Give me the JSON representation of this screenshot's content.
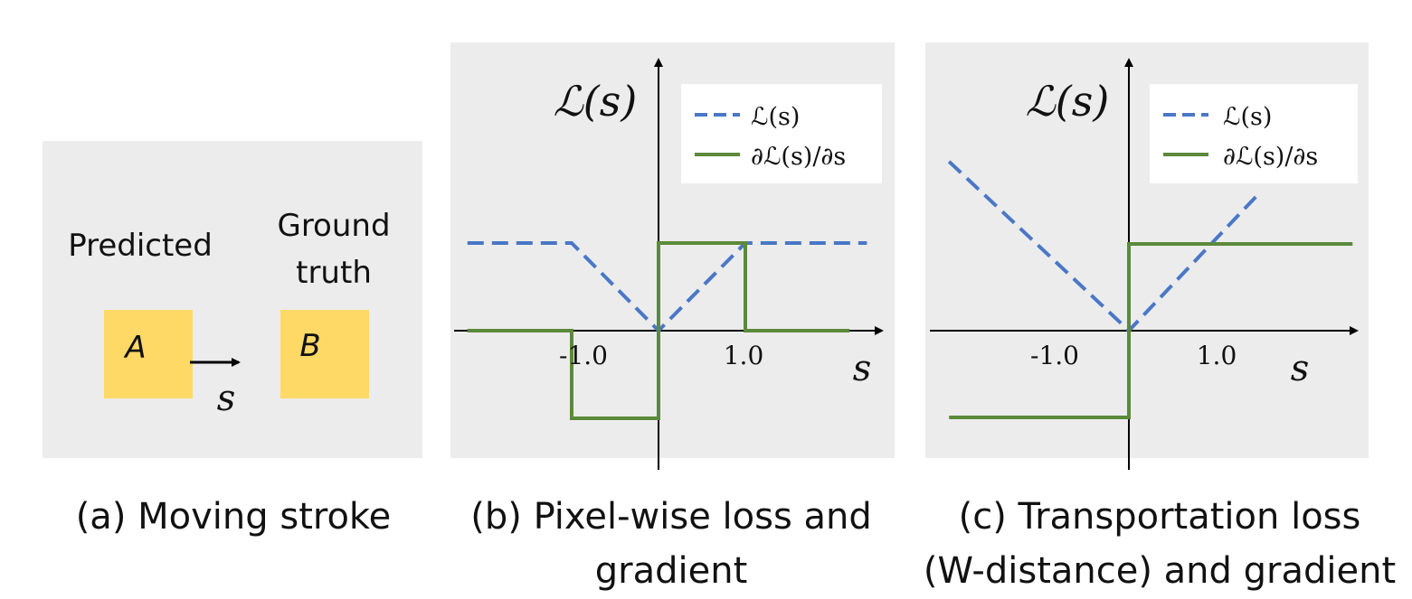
{
  "colors": {
    "panel_bg": "#ececec",
    "loss": "#4a77c6",
    "gradient": "#5b8a3a",
    "box": "#ffd966",
    "axis": "#000000"
  },
  "panel_a": {
    "predicted_label": "Predicted",
    "ground_truth_label_line1": "Ground",
    "ground_truth_label_line2": "truth",
    "box_a_letter": "A",
    "box_b_letter": "B",
    "shift_label": "s",
    "caption": "(a) Moving stroke"
  },
  "panel_b": {
    "caption_line1": "(b) Pixel-wise loss and",
    "caption_line2": "gradient",
    "y_name": "ℒ(s)",
    "x_name": "s",
    "legend": [
      {
        "label": "ℒ(s)",
        "style": "dashed",
        "color": "#4a77c6"
      },
      {
        "label": "∂ℒ(s)/∂s",
        "style": "solid",
        "color": "#5b8a3a"
      }
    ],
    "chart_data": {
      "type": "line",
      "x_ticks": [
        "-1.0",
        "1.0"
      ],
      "xlim": [
        -2.2,
        2.6
      ],
      "ylim": [
        -1.6,
        3.0
      ],
      "series": [
        {
          "x": [
            -2.2,
            -1.0,
            0.0,
            1.0,
            2.4
          ],
          "y": [
            1.0,
            1.0,
            0.0,
            1.0,
            1.0
          ]
        },
        {
          "x": [
            -2.2,
            -1.0,
            -1.0,
            0.0,
            0.0,
            1.0,
            1.0,
            2.2
          ],
          "y": [
            0.0,
            0.0,
            -1.0,
            -1.0,
            1.0,
            1.0,
            0.0,
            0.0
          ]
        }
      ]
    }
  },
  "panel_c": {
    "caption_line1": "(c) Transportation loss",
    "caption_line2": "(W-distance) and gradient",
    "y_name": "ℒ(s)",
    "x_name": "s",
    "legend": [
      {
        "label": "ℒ(s)",
        "style": "dashed",
        "color": "#4a77c6"
      },
      {
        "label": "∂ℒ(s)/∂s",
        "style": "solid",
        "color": "#5b8a3a"
      }
    ],
    "chart_data": {
      "type": "line",
      "x_ticks": [
        "-1.0",
        "1.0"
      ],
      "xlim": [
        -2.4,
        2.7
      ],
      "ylim": [
        -1.7,
        3.2
      ],
      "series": [
        {
          "x": [
            -2.05,
            0.0,
            1.5
          ],
          "y": [
            1.95,
            0.0,
            1.6
          ]
        },
        {
          "x": [
            -2.05,
            0.0,
            0.0,
            2.55
          ],
          "y": [
            -1.0,
            -1.0,
            1.0,
            1.0
          ]
        }
      ]
    }
  }
}
